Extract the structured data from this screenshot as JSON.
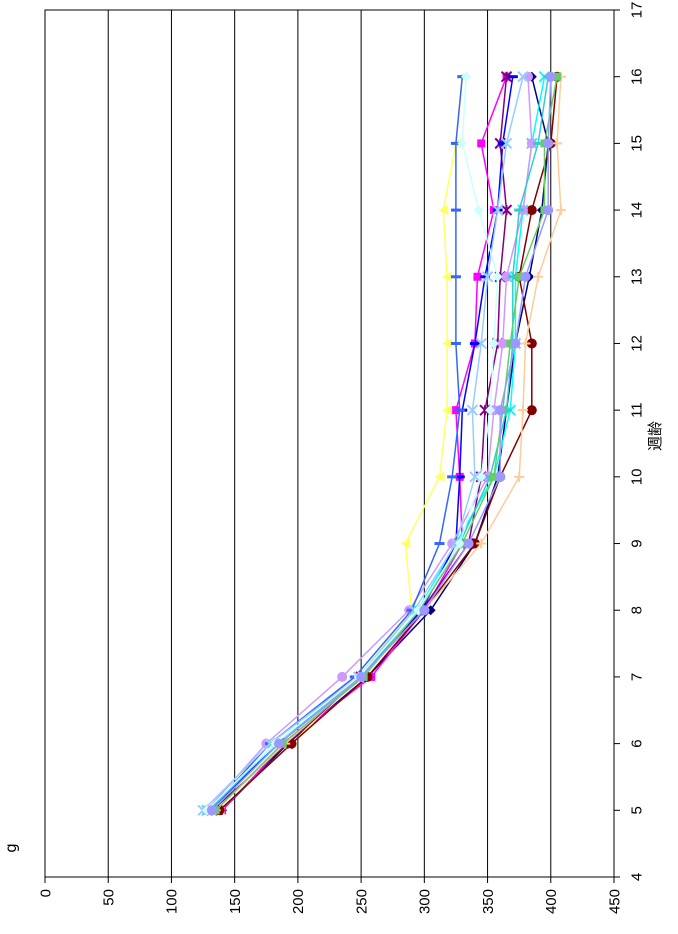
{
  "chart_data": {
    "type": "line",
    "orientation": "rotated-90-ccw",
    "title": "",
    "xlabel": "週齢",
    "ylabel": "g",
    "xlim": [
      4,
      17
    ],
    "ylim": [
      0,
      450
    ],
    "x_ticks": [
      4,
      5,
      6,
      7,
      8,
      9,
      10,
      11,
      12,
      13,
      14,
      15,
      16,
      17
    ],
    "y_ticks": [
      0,
      50,
      100,
      150,
      200,
      250,
      300,
      350,
      400,
      450
    ],
    "grid": "major-y",
    "legend": "none",
    "x": [
      5,
      6,
      7,
      8,
      9,
      10,
      11,
      12,
      13,
      14,
      15,
      16
    ],
    "series": [
      {
        "color": "#000080",
        "marker": "diamond",
        "values": [
          140,
          192,
          255,
          305,
          340,
          358,
          365,
          372,
          383,
          393,
          398,
          385
        ]
      },
      {
        "color": "#ff00ff",
        "marker": "square",
        "values": [
          140,
          190,
          258,
          300,
          330,
          328,
          325,
          340,
          342,
          355,
          345,
          365
        ]
      },
      {
        "color": "#ffff66",
        "marker": "triangle",
        "values": [
          138,
          195,
          248,
          290,
          285,
          312,
          318,
          318,
          318,
          315,
          325,
          330
        ]
      },
      {
        "color": "#00ffff",
        "marker": "x",
        "values": [
          128,
          185,
          250,
          295,
          325,
          355,
          368,
          372,
          372,
          378,
          385,
          395
        ]
      },
      {
        "color": "#800080",
        "marker": "star",
        "values": [
          132,
          192,
          250,
          298,
          335,
          345,
          348,
          358,
          360,
          365,
          360,
          365
        ]
      },
      {
        "color": "#800000",
        "marker": "circle",
        "values": [
          138,
          195,
          255,
          300,
          340,
          360,
          385,
          385,
          375,
          385,
          400,
          405
        ]
      },
      {
        "color": "#ffcc99",
        "marker": "plus",
        "values": [
          135,
          190,
          250,
          300,
          345,
          375,
          378,
          380,
          390,
          408,
          405,
          408
        ]
      },
      {
        "color": "#0000ff",
        "marker": "dash",
        "values": [
          130,
          185,
          250,
          298,
          325,
          328,
          330,
          340,
          348,
          358,
          362,
          370
        ]
      },
      {
        "color": "#cc99ff",
        "marker": "circle",
        "values": [
          128,
          175,
          235,
          288,
          322,
          350,
          355,
          362,
          365,
          378,
          385,
          382
        ]
      },
      {
        "color": "#3366ff",
        "marker": "dash",
        "values": [
          130,
          178,
          245,
          290,
          312,
          322,
          328,
          325,
          325,
          325,
          325,
          330
        ]
      },
      {
        "color": "#99ccff",
        "marker": "x",
        "values": [
          125,
          178,
          248,
          292,
          325,
          340,
          338,
          345,
          350,
          358,
          365,
          378
        ]
      },
      {
        "color": "#33cccc",
        "marker": "dash",
        "values": [
          130,
          182,
          250,
          295,
          328,
          352,
          365,
          370,
          370,
          375,
          390,
          398
        ]
      },
      {
        "color": "#66cc66",
        "marker": "square",
        "values": [
          135,
          188,
          252,
          296,
          330,
          355,
          362,
          368,
          375,
          395,
          395,
          405
        ]
      },
      {
        "color": "#ccffff",
        "marker": "diamond",
        "values": [
          128,
          182,
          248,
          295,
          328,
          345,
          352,
          355,
          358,
          343,
          330,
          333
        ]
      },
      {
        "color": "#9999ff",
        "marker": "circle",
        "values": [
          132,
          185,
          250,
          300,
          335,
          360,
          360,
          372,
          380,
          398,
          398,
          400
        ]
      }
    ]
  }
}
